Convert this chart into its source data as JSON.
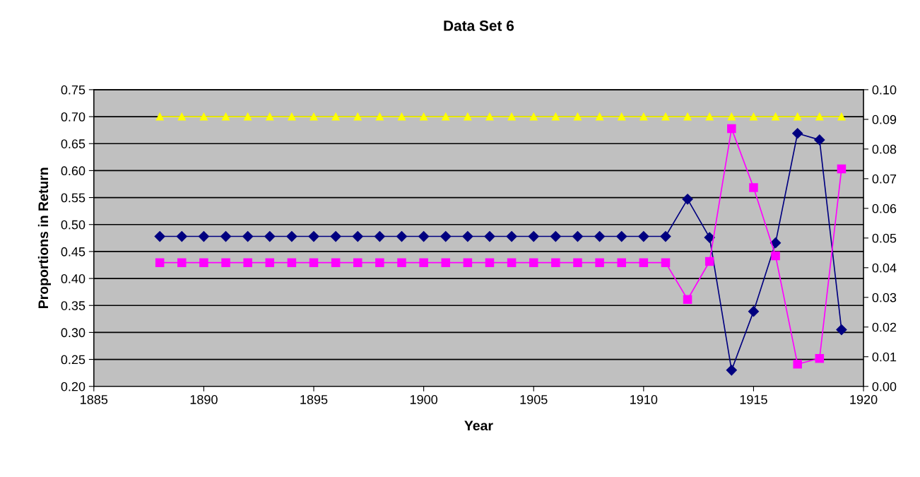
{
  "chart_data": {
    "type": "line",
    "title": "Data Set 6",
    "xlabel": "Year",
    "ylabel": "Proportions in Return",
    "x": [
      1888,
      1889,
      1890,
      1891,
      1892,
      1893,
      1894,
      1895,
      1896,
      1897,
      1898,
      1899,
      1900,
      1901,
      1902,
      1903,
      1904,
      1905,
      1906,
      1907,
      1908,
      1909,
      1910,
      1911,
      1912,
      1913,
      1914,
      1915,
      1916,
      1917,
      1918,
      1919
    ],
    "series": [
      {
        "color": "#000080",
        "marker": "diamond",
        "values": [
          0.478,
          0.478,
          0.478,
          0.478,
          0.478,
          0.478,
          0.478,
          0.478,
          0.478,
          0.478,
          0.478,
          0.478,
          0.478,
          0.478,
          0.478,
          0.478,
          0.478,
          0.478,
          0.478,
          0.478,
          0.478,
          0.478,
          0.478,
          0.478,
          0.547,
          0.476,
          0.23,
          0.339,
          0.466,
          0.669,
          0.657,
          0.305
        ]
      },
      {
        "color": "#ff00ff",
        "marker": "square",
        "axis": "y2",
        "values": [
          0.0417,
          0.0417,
          0.0417,
          0.0417,
          0.0417,
          0.0417,
          0.0417,
          0.0417,
          0.0417,
          0.0417,
          0.0417,
          0.0417,
          0.0417,
          0.0417,
          0.0417,
          0.0417,
          0.0417,
          0.0417,
          0.0417,
          0.0417,
          0.0417,
          0.0417,
          0.0417,
          0.0417,
          0.0293,
          0.0421,
          0.0869,
          0.067,
          0.044,
          0.0075,
          0.0094,
          0.0733
        ]
      },
      {
        "color": "#ffff00",
        "marker": "triangle",
        "values": [
          0.7,
          0.7,
          0.7,
          0.7,
          0.7,
          0.7,
          0.7,
          0.7,
          0.7,
          0.7,
          0.7,
          0.7,
          0.7,
          0.7,
          0.7,
          0.7,
          0.7,
          0.7,
          0.7,
          0.7,
          0.7,
          0.7,
          0.7,
          0.7,
          0.7,
          0.7,
          0.7,
          0.7,
          0.7,
          0.7,
          0.7,
          0.7
        ]
      }
    ],
    "xlim": [
      1885,
      1920
    ],
    "xticks": [
      1885,
      1890,
      1895,
      1900,
      1905,
      1910,
      1915,
      1920
    ],
    "ylim": [
      0.2,
      0.75
    ],
    "yticks": [
      {
        "value": 0.2,
        "label": "0.20"
      },
      {
        "value": 0.25,
        "label": "0.25"
      },
      {
        "value": 0.3,
        "label": "0.30"
      },
      {
        "value": 0.35,
        "label": "0.35"
      },
      {
        "value": 0.4,
        "label": "0.40"
      },
      {
        "value": 0.45,
        "label": "0.45"
      },
      {
        "value": 0.5,
        "label": "0.50"
      },
      {
        "value": 0.55,
        "label": "0.55"
      },
      {
        "value": 0.6,
        "label": "0.60"
      },
      {
        "value": 0.65,
        "label": "0.65"
      },
      {
        "value": 0.7,
        "label": "0.70"
      },
      {
        "value": 0.75,
        "label": "0.75"
      }
    ],
    "y2lim": [
      0,
      0.1
    ],
    "y2ticks": [
      {
        "value": 0,
        "label": "0.00"
      },
      {
        "value": 0.01,
        "label": "0.01"
      },
      {
        "value": 0.02,
        "label": "0.02"
      },
      {
        "value": 0.03,
        "label": "0.03"
      },
      {
        "value": 0.04,
        "label": "0.04"
      },
      {
        "value": 0.05,
        "label": "0.05"
      },
      {
        "value": 0.06,
        "label": "0.06"
      },
      {
        "value": 0.07,
        "label": "0.07"
      },
      {
        "value": 0.08,
        "label": "0.08"
      },
      {
        "value": 0.09,
        "label": "0.09"
      },
      {
        "value": 0.1,
        "label": "0.10"
      }
    ],
    "grid": "y",
    "legend": false
  }
}
